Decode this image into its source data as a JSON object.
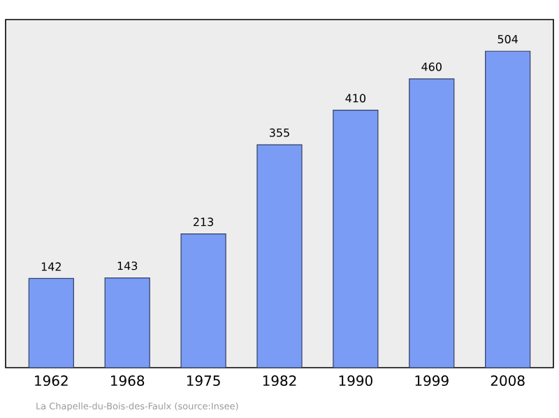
{
  "chart_data": {
    "type": "bar",
    "categories": [
      "1962",
      "1968",
      "1975",
      "1982",
      "1990",
      "1999",
      "2008"
    ],
    "values": [
      142,
      143,
      213,
      355,
      410,
      460,
      504
    ],
    "color": "#7b9cf5",
    "data_labels": true,
    "annotations": [
      "La Chapelle-du-Bois-des-Faulx    (source:Insee)"
    ]
  }
}
